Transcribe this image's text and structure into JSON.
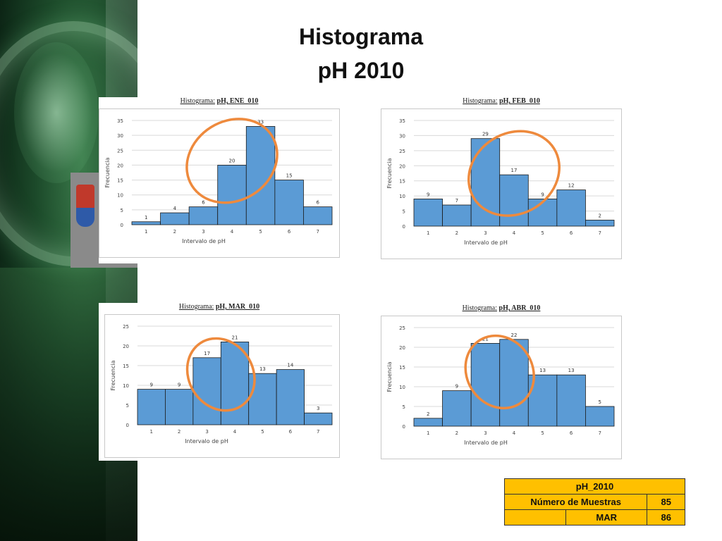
{
  "title": {
    "line1": "Histograma",
    "line2": "pH 2010"
  },
  "colors": {
    "bar": "#5b9bd5",
    "bar_stroke": "#1a1a1a",
    "highlight": "#ee8a3d",
    "table_bg": "#ffc000"
  },
  "chart_data": [
    {
      "type": "bar",
      "title_prefix": "Histograma:",
      "title_main": "pH, ENE_010",
      "categories": [
        "1",
        "2",
        "3",
        "4",
        "5",
        "6",
        "7"
      ],
      "values": [
        1,
        4,
        6,
        20,
        33,
        15,
        6
      ],
      "ylim": [
        0,
        35
      ],
      "yticks": [
        0,
        5,
        10,
        15,
        20,
        25,
        30,
        35
      ],
      "xlabel": "Intervalo de pH",
      "ylabel": "Frecuencia",
      "grid": true,
      "highlight_categories": [
        "3",
        "4",
        "5"
      ]
    },
    {
      "type": "bar",
      "title_prefix": "Histograma:",
      "title_main": "pH, FEB_010",
      "categories": [
        "1",
        "2",
        "3",
        "4",
        "5",
        "6",
        "7"
      ],
      "values": [
        9,
        7,
        29,
        17,
        9,
        12,
        2
      ],
      "ylim": [
        0,
        35
      ],
      "yticks": [
        0,
        5,
        10,
        15,
        20,
        25,
        30,
        35
      ],
      "xlabel": "Intervalo de pH",
      "ylabel": "Frecuencia",
      "grid": true,
      "highlight_categories": [
        "3",
        "4",
        "5"
      ]
    },
    {
      "type": "bar",
      "title_prefix": "Histograma:",
      "title_main": "pH, MAR_010",
      "categories": [
        "1",
        "2",
        "3",
        "4",
        "5",
        "6",
        "7"
      ],
      "values": [
        9,
        9,
        17,
        21,
        13,
        14,
        3
      ],
      "ylim": [
        0,
        25
      ],
      "yticks": [
        0,
        5,
        10,
        15,
        20,
        25
      ],
      "xlabel": "Intervalo de pH",
      "ylabel": "Frecuencia",
      "grid": true,
      "highlight_categories": [
        "3",
        "4"
      ]
    },
    {
      "type": "bar",
      "title_prefix": "Histograma:",
      "title_main": "pH, ABR_010",
      "categories": [
        "1",
        "2",
        "3",
        "4",
        "5",
        "6",
        "7"
      ],
      "values": [
        2,
        9,
        21,
        22,
        13,
        13,
        5
      ],
      "ylim": [
        0,
        25
      ],
      "yticks": [
        0,
        5,
        10,
        15,
        20,
        25
      ],
      "xlabel": "Intervalo de pH",
      "ylabel": "Frecuencia",
      "grid": true,
      "highlight_categories": [
        "3",
        "4"
      ]
    }
  ],
  "summary_table": {
    "header": "pH_2010",
    "rows": [
      {
        "label": "Número de Muestras",
        "value": "85"
      },
      {
        "label": "",
        "sublabel": "MAR",
        "value": "86"
      }
    ]
  }
}
